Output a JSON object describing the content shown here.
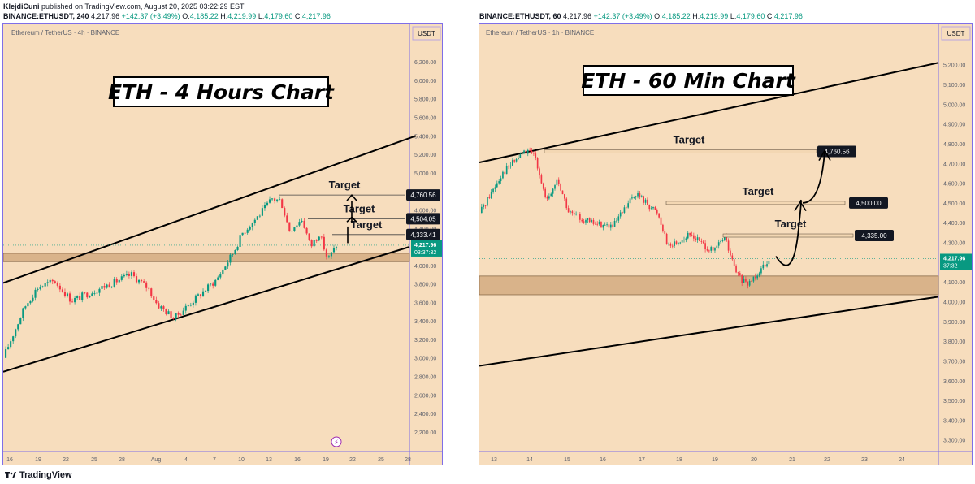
{
  "header": {
    "author": "KlejdiCuni",
    "published_text": "published on TradingView.com, August 20, 2025 03:22:29 EST"
  },
  "left_symbol_line": {
    "symbol": "BINANCE:ETHUSDT, 240",
    "price": "4,217.96",
    "change": "+142.37 (+3.49%)",
    "o_label": "O:",
    "o": "4,185.22",
    "h_label": "H:",
    "h": "4,219.99",
    "l_label": "L:",
    "l": "4,179.60",
    "c_label": "C:",
    "c": "4,217.96"
  },
  "right_symbol_line": {
    "symbol": "BINANCE:ETHUSDT, 60",
    "price": "4,217.96",
    "change": "+142.37 (+3.49%)",
    "o_label": "O:",
    "o": "4,185.22",
    "h_label": "H:",
    "h": "4,219.99",
    "l_label": "L:",
    "l": "4,179.60",
    "c_label": "C:",
    "c": "4,217.96"
  },
  "footer": {
    "brand": "TradingView"
  },
  "colors": {
    "background": "#f7ddbd",
    "up": "#089981",
    "down": "#f23645",
    "border": "#7f6ee8",
    "zone": "#d9b38a"
  },
  "chart_data": [
    {
      "type": "candlestick",
      "instrument": "Ethereum / TetherUS · 4h · BINANCE",
      "title": "ETH - 4 Hours Chart",
      "currency": "USDT",
      "y_ticks": [
        "6,200.00",
        "6,000.00",
        "5,800.00",
        "5,600.00",
        "5,400.00",
        "5,200.00",
        "5,000.00",
        "4,800.00",
        "4,600.00",
        "4,400.00",
        "4,200.00",
        "4,000.00",
        "3,800.00",
        "3,600.00",
        "3,400.00",
        "3,200.00",
        "3,000.00",
        "2,800.00",
        "2,600.00",
        "2,400.00",
        "2,200.00"
      ],
      "ylim": [
        2050,
        6350
      ],
      "x_ticks": [
        "16",
        "19",
        "22",
        "25",
        "28",
        "Aug",
        "4",
        "7",
        "10",
        "13",
        "16",
        "19",
        "22",
        "25",
        "28"
      ],
      "last_price": "4,217.96",
      "countdown": "03:37:32",
      "targets": [
        {
          "label": "Target",
          "value": 4760.56,
          "value_text": "4,760.56"
        },
        {
          "label": "Target",
          "value": 4504.05,
          "value_text": "4,504.05"
        },
        {
          "label": "Target",
          "value": 4333.41,
          "value_text": "4,333.41"
        }
      ],
      "support_zone": [
        4040,
        4130
      ],
      "channel": {
        "upper": [
          [
            0,
            3810
          ],
          [
            1,
            5400
          ]
        ],
        "lower": [
          [
            0,
            2850
          ],
          [
            1,
            4200
          ]
        ]
      },
      "price_path": [
        [
          0,
          3000
        ],
        [
          0.05,
          3550
        ],
        [
          0.08,
          3760
        ],
        [
          0.12,
          3830
        ],
        [
          0.16,
          3620
        ],
        [
          0.2,
          3700
        ],
        [
          0.26,
          3820
        ],
        [
          0.3,
          3900
        ],
        [
          0.34,
          3750
        ],
        [
          0.36,
          3580
        ],
        [
          0.4,
          3430
        ],
        [
          0.44,
          3600
        ],
        [
          0.5,
          3850
        ],
        [
          0.54,
          4150
        ],
        [
          0.56,
          4350
        ],
        [
          0.6,
          4550
        ],
        [
          0.63,
          4720
        ],
        [
          0.65,
          4700
        ],
        [
          0.67,
          4380
        ],
        [
          0.7,
          4500
        ],
        [
          0.72,
          4200
        ],
        [
          0.74,
          4350
        ],
        [
          0.76,
          4060
        ],
        [
          0.78,
          4218
        ]
      ]
    },
    {
      "type": "candlestick",
      "instrument": "Ethereum / TetherUS · 1h · BINANCE",
      "title": "ETH - 60 Min Chart",
      "currency": "USDT",
      "y_ticks": [
        "5,200.00",
        "5,100.00",
        "5,000.00",
        "4,900.00",
        "4,800.00",
        "4,700.00",
        "4,600.00",
        "4,500.00",
        "4,400.00",
        "4,300.00",
        "4,200.00",
        "4,100.00",
        "4,000.00",
        "3,900.00",
        "3,800.00",
        "3,700.00",
        "3,600.00",
        "3,500.00",
        "3,400.00",
        "3,300.00"
      ],
      "ylim": [
        3270,
        5285
      ],
      "x_ticks": [
        "13",
        "14",
        "15",
        "16",
        "17",
        "18",
        "19",
        "20",
        "21",
        "22",
        "23",
        "24"
      ],
      "last_price": "4,217.96",
      "countdown": "37:32",
      "targets": [
        {
          "label": "Target",
          "value": 4760.56,
          "value_text": "4,760.56"
        },
        {
          "label": "Target",
          "value": 4500.0,
          "value_text": "4,500.00"
        },
        {
          "label": "Target",
          "value": 4335.0,
          "value_text": "4,335.00"
        }
      ],
      "support_zone": [
        4035,
        4130
      ],
      "channel": {
        "upper": [
          [
            0,
            4705
          ],
          [
            1,
            5210
          ]
        ],
        "lower": [
          [
            0,
            3675
          ],
          [
            1,
            4025
          ]
        ]
      },
      "price_path": [
        [
          0,
          4450
        ],
        [
          0.04,
          4650
        ],
        [
          0.08,
          4760
        ],
        [
          0.1,
          4740
        ],
        [
          0.12,
          4500
        ],
        [
          0.14,
          4620
        ],
        [
          0.16,
          4450
        ],
        [
          0.2,
          4400
        ],
        [
          0.24,
          4380
        ],
        [
          0.28,
          4550
        ],
        [
          0.3,
          4500
        ],
        [
          0.32,
          4450
        ],
        [
          0.34,
          4280
        ],
        [
          0.38,
          4340
        ],
        [
          0.42,
          4250
        ],
        [
          0.44,
          4330
        ],
        [
          0.46,
          4150
        ],
        [
          0.48,
          4080
        ],
        [
          0.5,
          4150
        ],
        [
          0.52,
          4218
        ]
      ]
    }
  ]
}
